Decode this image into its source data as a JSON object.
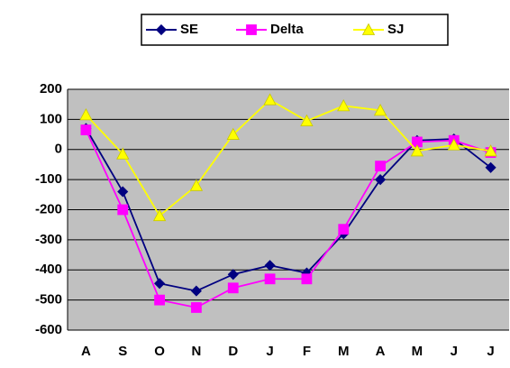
{
  "chart_data": {
    "type": "line",
    "categories": [
      "A",
      "S",
      "O",
      "N",
      "D",
      "J",
      "F",
      "M",
      "A",
      "M",
      "J",
      "J"
    ],
    "series": [
      {
        "name": "SE",
        "color": "#000080",
        "marker": "diamond",
        "values": [
          70,
          -140,
          -445,
          -470,
          -415,
          -385,
          -410,
          -280,
          -100,
          30,
          35,
          -60
        ]
      },
      {
        "name": "Delta",
        "color": "#ff00ff",
        "marker": "square",
        "values": [
          65,
          -200,
          -500,
          -525,
          -460,
          -430,
          -430,
          -265,
          -55,
          25,
          30,
          -10
        ]
      },
      {
        "name": "SJ",
        "color": "#ffff00",
        "marker": "triangle",
        "values": [
          115,
          -15,
          -220,
          -120,
          50,
          165,
          95,
          145,
          130,
          -5,
          15,
          -5
        ]
      }
    ],
    "ylim": [
      -600,
      200
    ],
    "yticks": [
      -600,
      -500,
      -400,
      -300,
      -200,
      -100,
      0,
      100,
      200
    ],
    "grid": true,
    "legend": "top"
  }
}
